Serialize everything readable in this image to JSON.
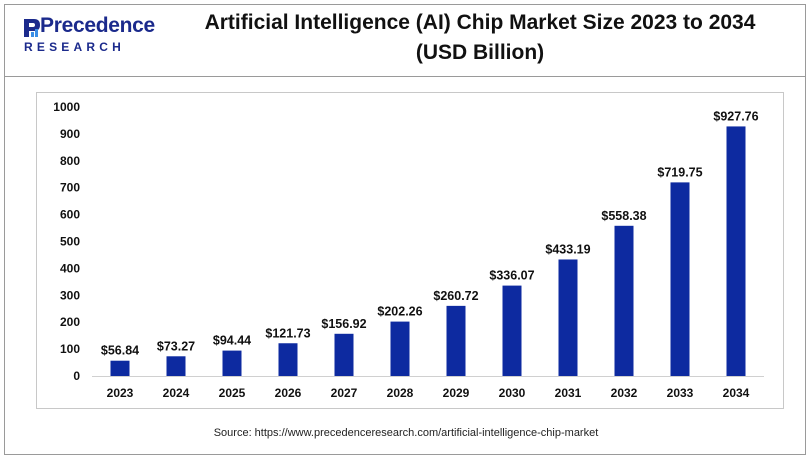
{
  "brand": {
    "name": "Precedence",
    "tagline": "RESEARCH",
    "color": "#1b2a8c"
  },
  "title_line1": "Artificial Intelligence (AI) Chip Market Size 2023 to 2034",
  "title_line2": "(USD Billion)",
  "source": "Source: https://www.precedenceresearch.com/artificial-intelligence-chip-market",
  "chart_data": {
    "type": "bar",
    "title": "Artificial Intelligence (AI) Chip Market Size 2023 to 2034 (USD Billion)",
    "categories": [
      "2023",
      "2024",
      "2025",
      "2026",
      "2027",
      "2028",
      "2029",
      "2030",
      "2031",
      "2032",
      "2033",
      "2034"
    ],
    "values": [
      56.84,
      73.27,
      94.44,
      121.73,
      156.92,
      202.26,
      260.72,
      336.07,
      433.19,
      558.38,
      719.75,
      927.76
    ],
    "data_labels": [
      "$56.84",
      "$73.27",
      "$94.44",
      "$121.73",
      "$156.92",
      "$202.26",
      "$260.72",
      "$336.07",
      "$433.19",
      "$558.38",
      "$719.75",
      "$927.76"
    ],
    "yticks": [
      0,
      100,
      200,
      300,
      400,
      500,
      600,
      700,
      800,
      900,
      1000
    ],
    "ylim": [
      0,
      1000
    ],
    "xlabel": "",
    "ylabel": "",
    "grid": false,
    "legend": "none",
    "bar_color": "#0d2aa0"
  }
}
